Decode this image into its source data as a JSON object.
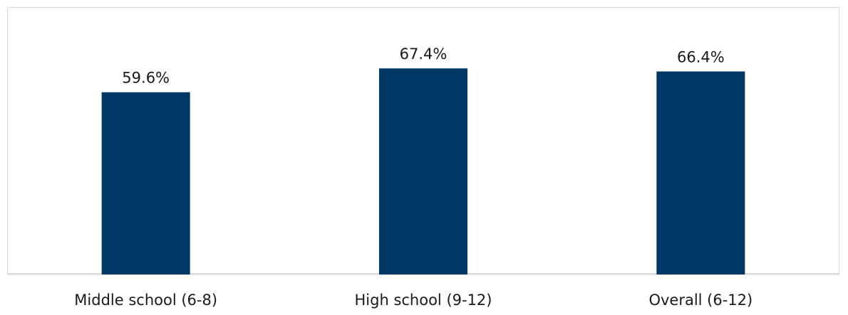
{
  "chart_data": {
    "type": "bar",
    "categories": [
      "Middle school (6-8)",
      "High school (9-12)",
      "Overall (6-12)"
    ],
    "values": [
      59.6,
      67.4,
      66.4
    ],
    "data_labels": [
      "59.6%",
      "67.4%",
      "66.4%"
    ],
    "title": "",
    "xlabel": "",
    "ylabel": "",
    "ylim": [
      0,
      80
    ],
    "grid": false,
    "legend": "none",
    "bar_color": "#003865",
    "axis_color": "#d9d9d9"
  }
}
